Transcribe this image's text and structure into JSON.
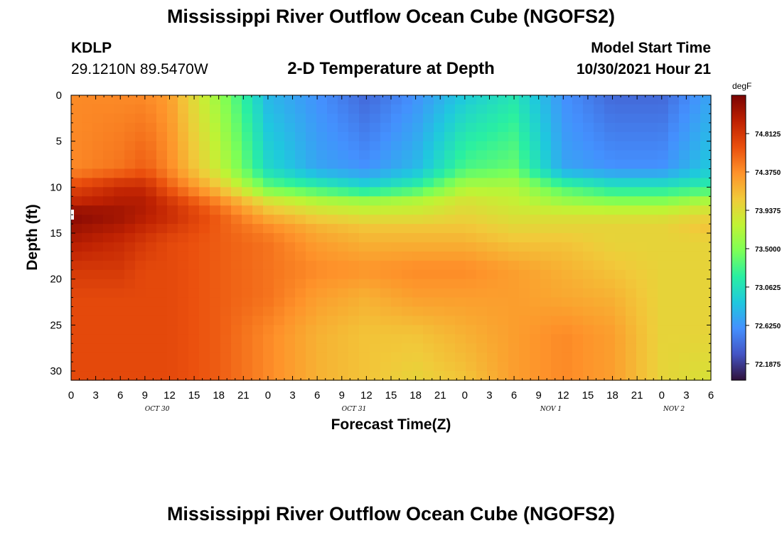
{
  "header": {
    "title": "Mississippi River Outflow Ocean Cube (NGOFS2)",
    "station": "KDLP",
    "coords": "29.1210N  89.5470W",
    "subtitle": "2-D Temperature at Depth",
    "model_start_label": "Model Start Time",
    "model_start_value": "10/30/2021 Hour 21"
  },
  "footer": {
    "title": "Mississippi River Outflow Ocean Cube (NGOFS2)"
  },
  "chart_data": {
    "type": "heatmap",
    "title": "2-D Temperature at Depth",
    "xlabel": "Forecast Time(Z)",
    "ylabel": "Depth (ft)",
    "x_ticks": [
      "0",
      "3",
      "6",
      "9",
      "12",
      "15",
      "18",
      "21",
      "0",
      "3",
      "6",
      "9",
      "12",
      "15",
      "18",
      "21",
      "0",
      "3",
      "6",
      "9",
      "12",
      "15",
      "18",
      "21",
      "0",
      "3",
      "6"
    ],
    "x_date_labels": [
      {
        "label": "OCT 30",
        "hour_index": 3.5
      },
      {
        "label": "OCT 31",
        "hour_index": 11.5
      },
      {
        "label": "NOV 1",
        "hour_index": 19.5
      },
      {
        "label": "NOV 2",
        "hour_index": 24.5
      }
    ],
    "x_range_hours": [
      0,
      78
    ],
    "y_ticks": [
      0,
      5,
      10,
      15,
      20,
      25,
      30
    ],
    "ylim": [
      0,
      31
    ],
    "colorbar": {
      "unit": "degF",
      "min": 72.0,
      "max": 75.25,
      "tick_values": [
        74.8125,
        74.375,
        73.9375,
        73.5,
        73.0625,
        72.625,
        72.1875
      ],
      "tick_labels": [
        "74.8125",
        "74.3750",
        "73.9375",
        "73.5000",
        "73.0625",
        "72.6250",
        "72.1875"
      ],
      "colors": [
        "#30123b",
        "#4454c4",
        "#4490fe",
        "#1fc8de",
        "#29efa2",
        "#7dff56",
        "#c1f334",
        "#f1ca3a",
        "#fe922a",
        "#ea4f0d",
        "#be2102",
        "#7a0403"
      ]
    },
    "depth_levels_ft": [
      0,
      8,
      10,
      11.5,
      13,
      14.5,
      16,
      19,
      22,
      26,
      31
    ],
    "times_hr": [
      0,
      6,
      9,
      12,
      18,
      24,
      30,
      36,
      42,
      48,
      54,
      60,
      66,
      72,
      78
    ],
    "values_degF": [
      [
        74.4,
        74.4,
        74.4,
        74.3,
        73.6,
        72.8,
        72.6,
        72.4,
        72.6,
        72.9,
        73.1,
        72.6,
        72.4,
        72.4,
        72.7
      ],
      [
        74.4,
        74.5,
        74.6,
        74.4,
        73.8,
        73.0,
        72.7,
        72.6,
        72.8,
        73.3,
        73.4,
        72.7,
        72.6,
        72.6,
        72.9
      ],
      [
        74.7,
        74.9,
        74.9,
        74.6,
        74.1,
        73.4,
        73.2,
        73.0,
        73.2,
        73.7,
        73.7,
        73.3,
        73.1,
        73.1,
        73.2
      ],
      [
        74.9,
        75.0,
        75.0,
        74.8,
        74.4,
        73.9,
        73.7,
        73.6,
        73.7,
        73.9,
        73.8,
        73.6,
        73.5,
        73.5,
        73.7
      ],
      [
        75.2,
        75.1,
        75.0,
        74.9,
        74.6,
        74.2,
        74.0,
        73.9,
        73.9,
        74.0,
        73.9,
        73.9,
        73.9,
        73.9,
        74.0
      ],
      [
        75.1,
        75.0,
        74.9,
        74.8,
        74.6,
        74.4,
        74.2,
        74.1,
        74.1,
        74.1,
        74.0,
        74.0,
        74.0,
        74.0,
        74.1
      ],
      [
        75.0,
        74.9,
        74.8,
        74.7,
        74.6,
        74.5,
        74.3,
        74.2,
        74.2,
        74.2,
        74.1,
        74.1,
        74.0,
        74.0,
        74.0
      ],
      [
        74.8,
        74.8,
        74.7,
        74.7,
        74.6,
        74.5,
        74.4,
        74.35,
        74.4,
        74.4,
        74.3,
        74.2,
        74.1,
        74.0,
        74.0
      ],
      [
        74.7,
        74.7,
        74.7,
        74.7,
        74.6,
        74.5,
        74.3,
        74.2,
        74.3,
        74.3,
        74.3,
        74.25,
        74.2,
        74.0,
        74.0
      ],
      [
        74.7,
        74.7,
        74.7,
        74.7,
        74.6,
        74.4,
        74.2,
        74.1,
        74.1,
        74.2,
        74.3,
        74.4,
        74.3,
        74.0,
        74.0
      ],
      [
        74.7,
        74.7,
        74.7,
        74.7,
        74.6,
        74.4,
        74.2,
        74.1,
        74.0,
        74.1,
        74.3,
        74.4,
        74.3,
        74.0,
        73.9
      ]
    ]
  }
}
